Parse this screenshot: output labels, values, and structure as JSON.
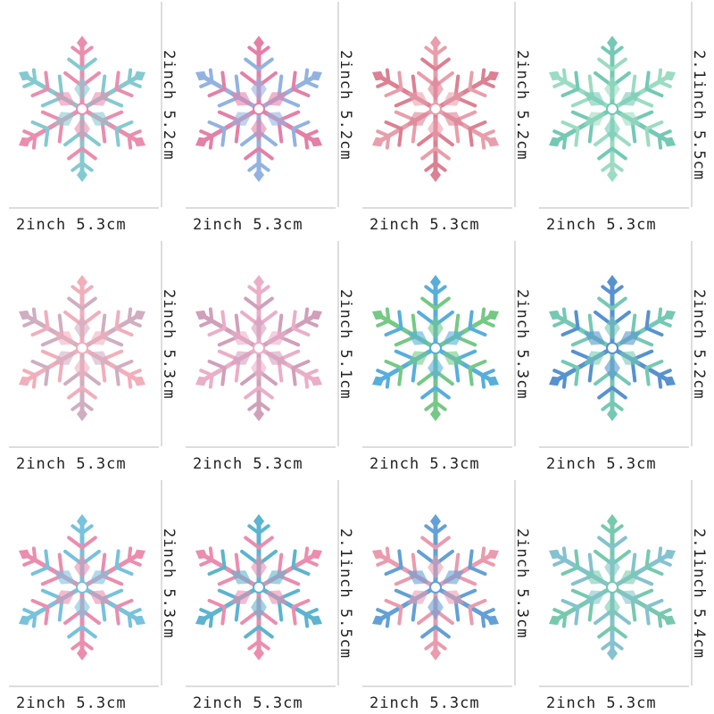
{
  "items": [
    {
      "width": "2inch 5.3cm",
      "height": "2inch 5.2cm"
    },
    {
      "width": "2inch 5.3cm",
      "height": "2inch 5.2cm"
    },
    {
      "width": "2inch 5.3cm",
      "height": "2inch 5.2cm"
    },
    {
      "width": "2inch 5.3cm",
      "height": "2.1inch 5.5cm"
    },
    {
      "width": "2inch 5.3cm",
      "height": "2inch 5.3cm"
    },
    {
      "width": "2inch 5.3cm",
      "height": "2inch 5.1cm"
    },
    {
      "width": "2inch 5.3cm",
      "height": "2inch 5.3cm"
    },
    {
      "width": "2inch 5.3cm",
      "height": "2inch 5.2cm"
    },
    {
      "width": "2inch 5.3cm",
      "height": "2inch 5.3cm"
    },
    {
      "width": "2inch 5.3cm",
      "height": "2.1inch 5.5cm"
    },
    {
      "width": "2inch 5.3cm",
      "height": "2inch 5.3cm"
    },
    {
      "width": "2inch 5.3cm",
      "height": "2.1inch 5.4cm"
    }
  ]
}
